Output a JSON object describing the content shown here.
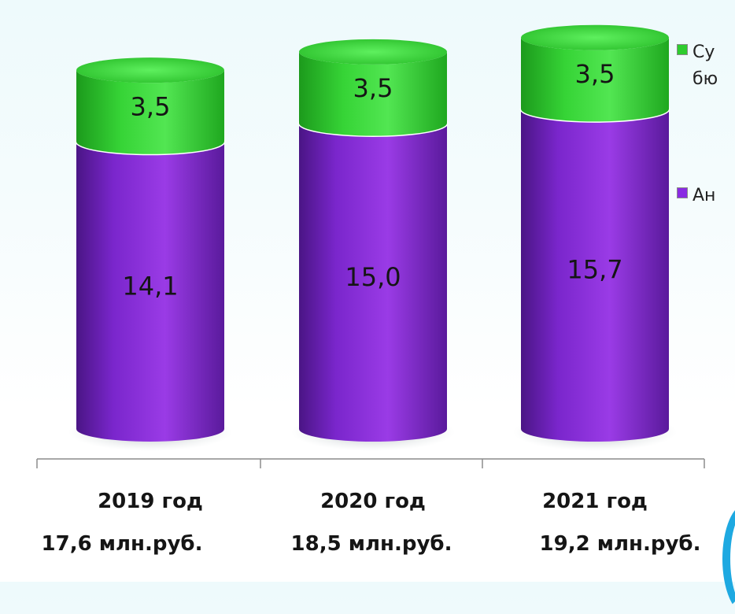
{
  "chart_data": {
    "type": "bar",
    "stacked": true,
    "categories": [
      "2019 год",
      "2020 год",
      "2021 год"
    ],
    "totals": [
      "17,6 млн.руб.",
      "18,5 млн.руб.",
      "19,2 млн.руб."
    ],
    "series": [
      {
        "name": "Ан",
        "color": "#8a2be2",
        "values": [
          14.1,
          15.0,
          15.7
        ],
        "labels": [
          "14,1",
          "15,0",
          "15,7"
        ]
      },
      {
        "name": "Су\nбю",
        "color": "#2ecc2e",
        "values": [
          3.5,
          3.5,
          3.5
        ],
        "labels": [
          "3,5",
          "3,5",
          "3,5"
        ]
      }
    ],
    "legend": "right",
    "grid": false
  }
}
